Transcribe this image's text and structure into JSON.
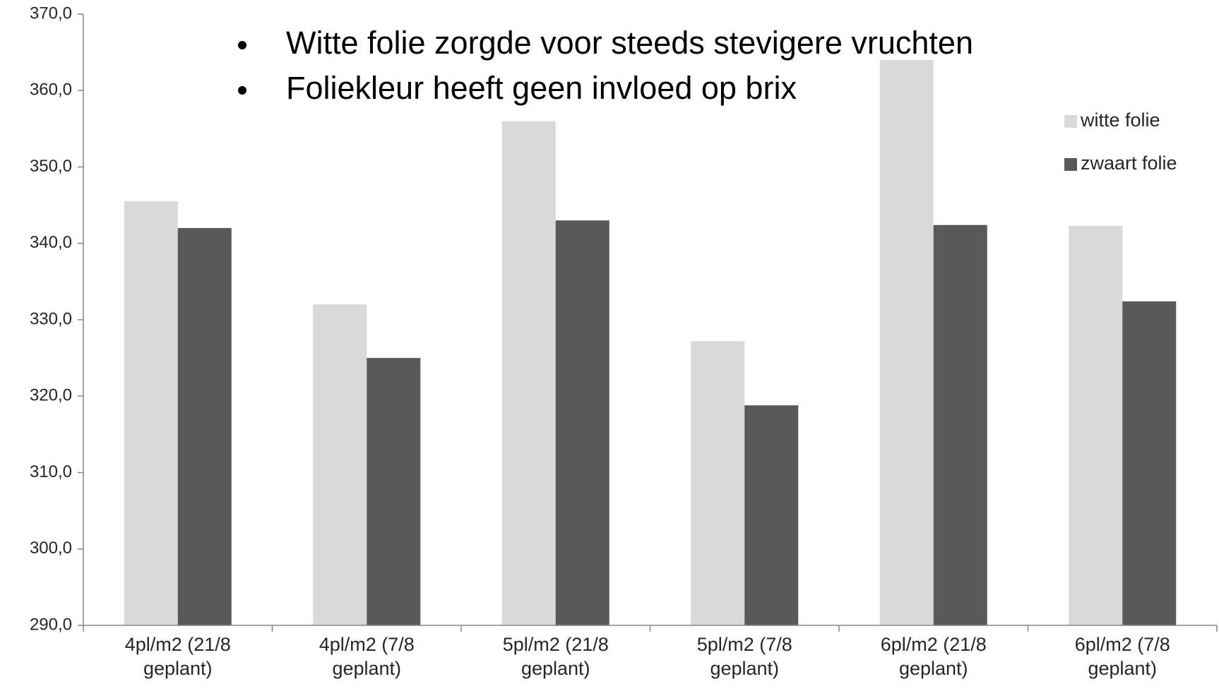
{
  "chart_data": {
    "type": "bar",
    "annotations": [
      "Witte folie zorgde voor steeds stevigere vruchten",
      "Foliekleur heeft geen invloed op brix"
    ],
    "categories": [
      "4pl/m2 (21/8 geplant)",
      "4pl/m2 (7/8 geplant)",
      "5pl/m2 (21/8 geplant)",
      "5pl/m2 (7/8 geplant)",
      "6pl/m2 (21/8 geplant)",
      "6pl/m2 (7/8 geplant)"
    ],
    "series": [
      {
        "name": "witte folie",
        "color": "#d9d9d9",
        "values": [
          345.5,
          332,
          356,
          327.2,
          364,
          342.3
        ]
      },
      {
        "name": "zwaart folie",
        "color": "#595959",
        "values": [
          342,
          325,
          343,
          318.8,
          342.4,
          332.4
        ]
      }
    ],
    "ylim": [
      290,
      370
    ],
    "yticks": [
      {
        "value": 290,
        "label": "290,0"
      },
      {
        "value": 300,
        "label": "300,0"
      },
      {
        "value": 310,
        "label": "310,0"
      },
      {
        "value": 320,
        "label": "320,0"
      },
      {
        "value": 330,
        "label": "330,0"
      },
      {
        "value": 340,
        "label": "340,0"
      },
      {
        "value": 350,
        "label": "350,0"
      },
      {
        "value": 360,
        "label": "360,0"
      },
      {
        "value": 370,
        "label": "370,0"
      }
    ],
    "legend": "right",
    "grid": false
  }
}
